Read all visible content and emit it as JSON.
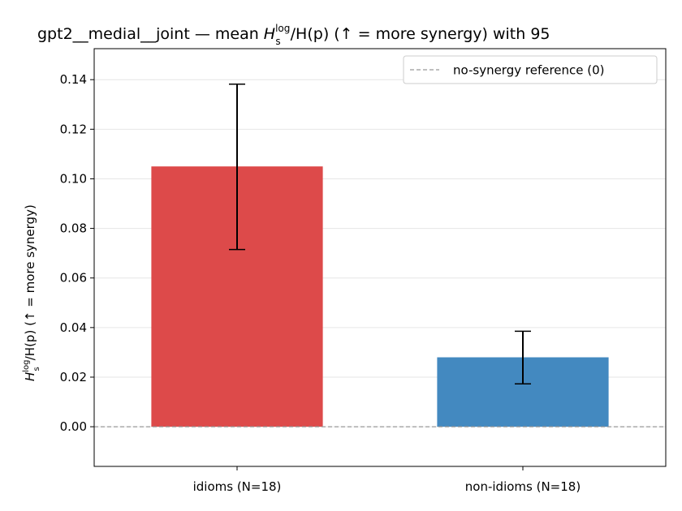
{
  "chart_data": {
    "type": "bar",
    "title_prefix": "gpt2__medial__joint — mean ",
    "title_H": "H",
    "title_sup": "log",
    "title_sub": "s",
    "title_suffix": "/H(p)  (↑ = more synergy) with 95",
    "ylabel_H": "H",
    "ylabel_sup": "log",
    "ylabel_sub": "s",
    "ylabel_suffix": "/H(p)  (↑ = more synergy)",
    "categories": [
      "idioms (N=18)",
      "non-idioms (N=18)"
    ],
    "values": [
      0.105,
      0.028
    ],
    "ci_low": [
      0.0715,
      0.0173
    ],
    "ci_high": [
      0.1382,
      0.0385
    ],
    "colors": [
      "#dd4a4a",
      "#4389c0"
    ],
    "ylim": [
      -0.016,
      0.1525
    ],
    "yticks": [
      0.0,
      0.02,
      0.04,
      0.06,
      0.08,
      0.1,
      0.12,
      0.14
    ],
    "ytick_labels": [
      "0.00",
      "0.02",
      "0.04",
      "0.06",
      "0.08",
      "0.10",
      "0.12",
      "0.14"
    ],
    "grid": true,
    "legend": {
      "position": "top-right",
      "entries": [
        "no-synergy reference (0)"
      ]
    },
    "reference_line": 0
  }
}
